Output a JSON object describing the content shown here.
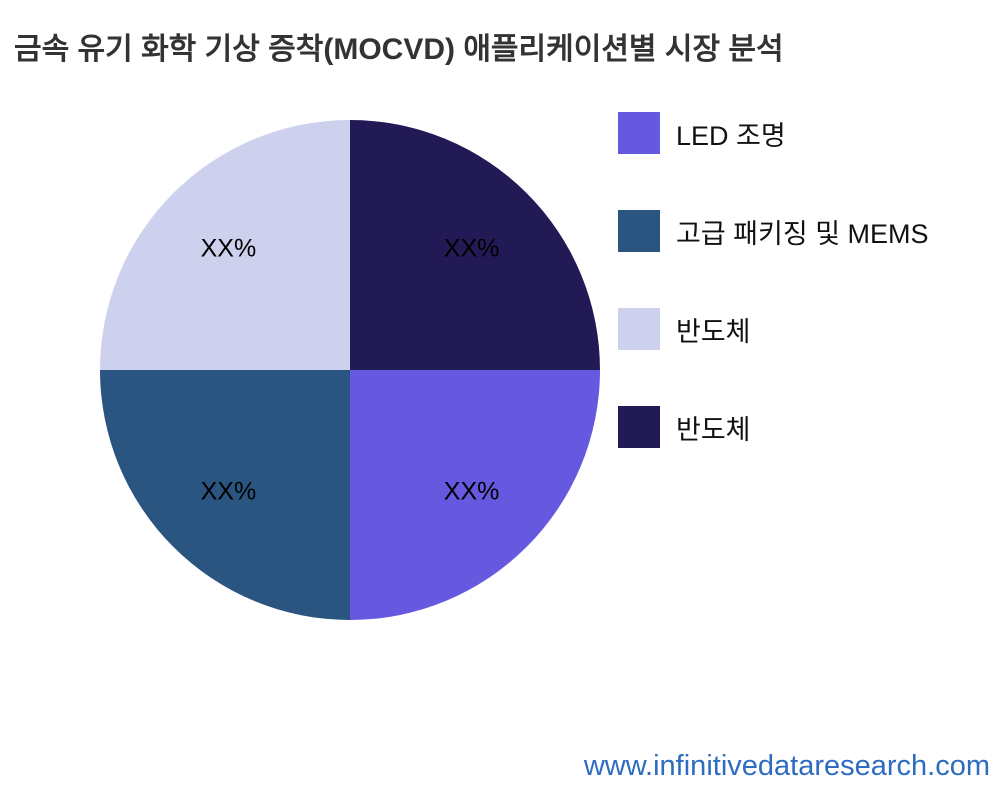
{
  "title": "금속 유기 화학 기상 증착(MOCVD) 애플리케이션별 시장 분석",
  "website": "www.infinitivedataresearch.com",
  "chart_data": {
    "type": "pie",
    "title": "금속 유기 화학 기상 증착(MOCVD) 애플리케이션별 시장 분석",
    "legend_position": "right",
    "start_angle_deg": 0,
    "direction": "clockwise",
    "slices": [
      {
        "label": "반도체",
        "value": 25,
        "display_value": "XX%",
        "color": "#221a55"
      },
      {
        "label": "LED 조명",
        "value": 25,
        "display_value": "XX%",
        "color": "#6659e0"
      },
      {
        "label": "고급 패키징 및 MEMS",
        "value": 25,
        "display_value": "XX%",
        "color": "#2b5581"
      },
      {
        "label": "반도체",
        "value": 25,
        "display_value": "XX%",
        "color": "#cdd1ee"
      }
    ],
    "legend": [
      {
        "label": "LED 조명",
        "color": "#6659e0"
      },
      {
        "label": "고급 패키징 및 MEMS",
        "color": "#2b5581"
      },
      {
        "label": "반도체",
        "color": "#cdd1ee"
      },
      {
        "label": "반도체",
        "color": "#221a55"
      }
    ]
  }
}
